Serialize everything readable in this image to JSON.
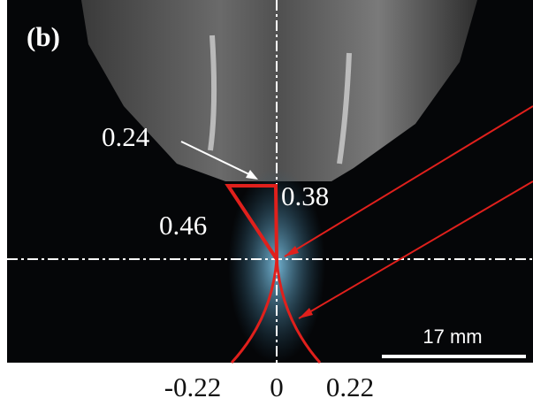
{
  "panel_label": "(b)",
  "annotations": {
    "top_width": "0.24",
    "right_height": "0.38",
    "left_length": "0.46"
  },
  "scale_bar": "17 mm",
  "x_labels": [
    "-0.22",
    "0",
    "0.22"
  ]
}
